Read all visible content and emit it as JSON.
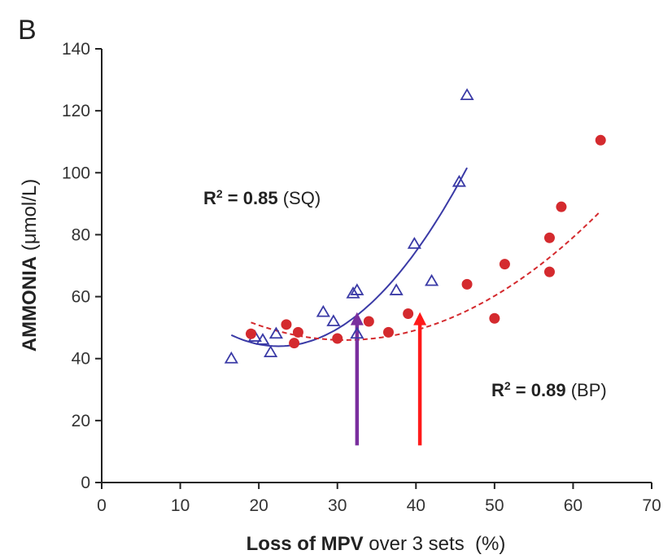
{
  "chart_data": {
    "type": "scatter",
    "panel_label": "B",
    "ylabel_bold": "AMMONIA",
    "ylabel_rest": " (μmol/L)",
    "xlabel_bold": "Loss of MPV",
    "xlabel_rest": " over 3 sets  (%)",
    "xlim": [
      0,
      70
    ],
    "ylim": [
      0,
      140
    ],
    "xticks": [
      0,
      10,
      20,
      30,
      40,
      50,
      60,
      70
    ],
    "yticks": [
      0,
      20,
      40,
      60,
      80,
      100,
      120,
      140
    ],
    "grid": false,
    "series": [
      {
        "name": "SQ",
        "marker": "triangle-open",
        "color": "#3a3aa6",
        "points": [
          [
            16.5,
            40
          ],
          [
            19.5,
            47
          ],
          [
            20.5,
            46
          ],
          [
            21.5,
            42
          ],
          [
            22.2,
            48
          ],
          [
            28.2,
            55
          ],
          [
            29.5,
            52
          ],
          [
            32,
            61
          ],
          [
            32.5,
            62
          ],
          [
            32.5,
            48
          ],
          [
            37.5,
            62
          ],
          [
            39.8,
            77
          ],
          [
            42,
            65
          ],
          [
            45.5,
            97
          ],
          [
            46.5,
            125
          ]
        ],
        "fit": {
          "style": "solid",
          "x_range": [
            16.5,
            46.5
          ],
          "a": 0.1,
          "h": 22.5,
          "k": 44
        }
      },
      {
        "name": "BP",
        "marker": "circle-filled",
        "color": "#d42a2e",
        "points": [
          [
            19,
            48
          ],
          [
            23.5,
            51
          ],
          [
            24.5,
            45
          ],
          [
            25,
            48.5
          ],
          [
            30,
            46.5
          ],
          [
            34,
            52
          ],
          [
            36.5,
            48.5
          ],
          [
            39,
            54.5
          ],
          [
            46.5,
            64
          ],
          [
            50,
            53
          ],
          [
            51.3,
            70.5
          ],
          [
            57,
            79
          ],
          [
            57,
            68
          ],
          [
            58.5,
            89
          ],
          [
            63.5,
            110.5
          ]
        ],
        "fit": {
          "style": "dashed",
          "x_range": [
            19,
            63.5
          ],
          "a": 0.0394,
          "h": 31,
          "k": 46
        }
      }
    ],
    "annotations": [
      {
        "r2_prefix": "R",
        "r2_sup": "2",
        "r2_eq": " = ",
        "r2_value": "0.85",
        "group": " (SQ)"
      },
      {
        "r2_prefix": "R",
        "r2_sup": "2",
        "r2_eq": " = ",
        "r2_value": "0.89",
        "group": " (BP)"
      }
    ],
    "arrows": [
      {
        "x": 32.5,
        "y_from": 12,
        "y_to": 55,
        "color": "#7a2f9e"
      },
      {
        "x": 40.5,
        "y_from": 12,
        "y_to": 55,
        "color": "#ff1a1a"
      }
    ]
  }
}
